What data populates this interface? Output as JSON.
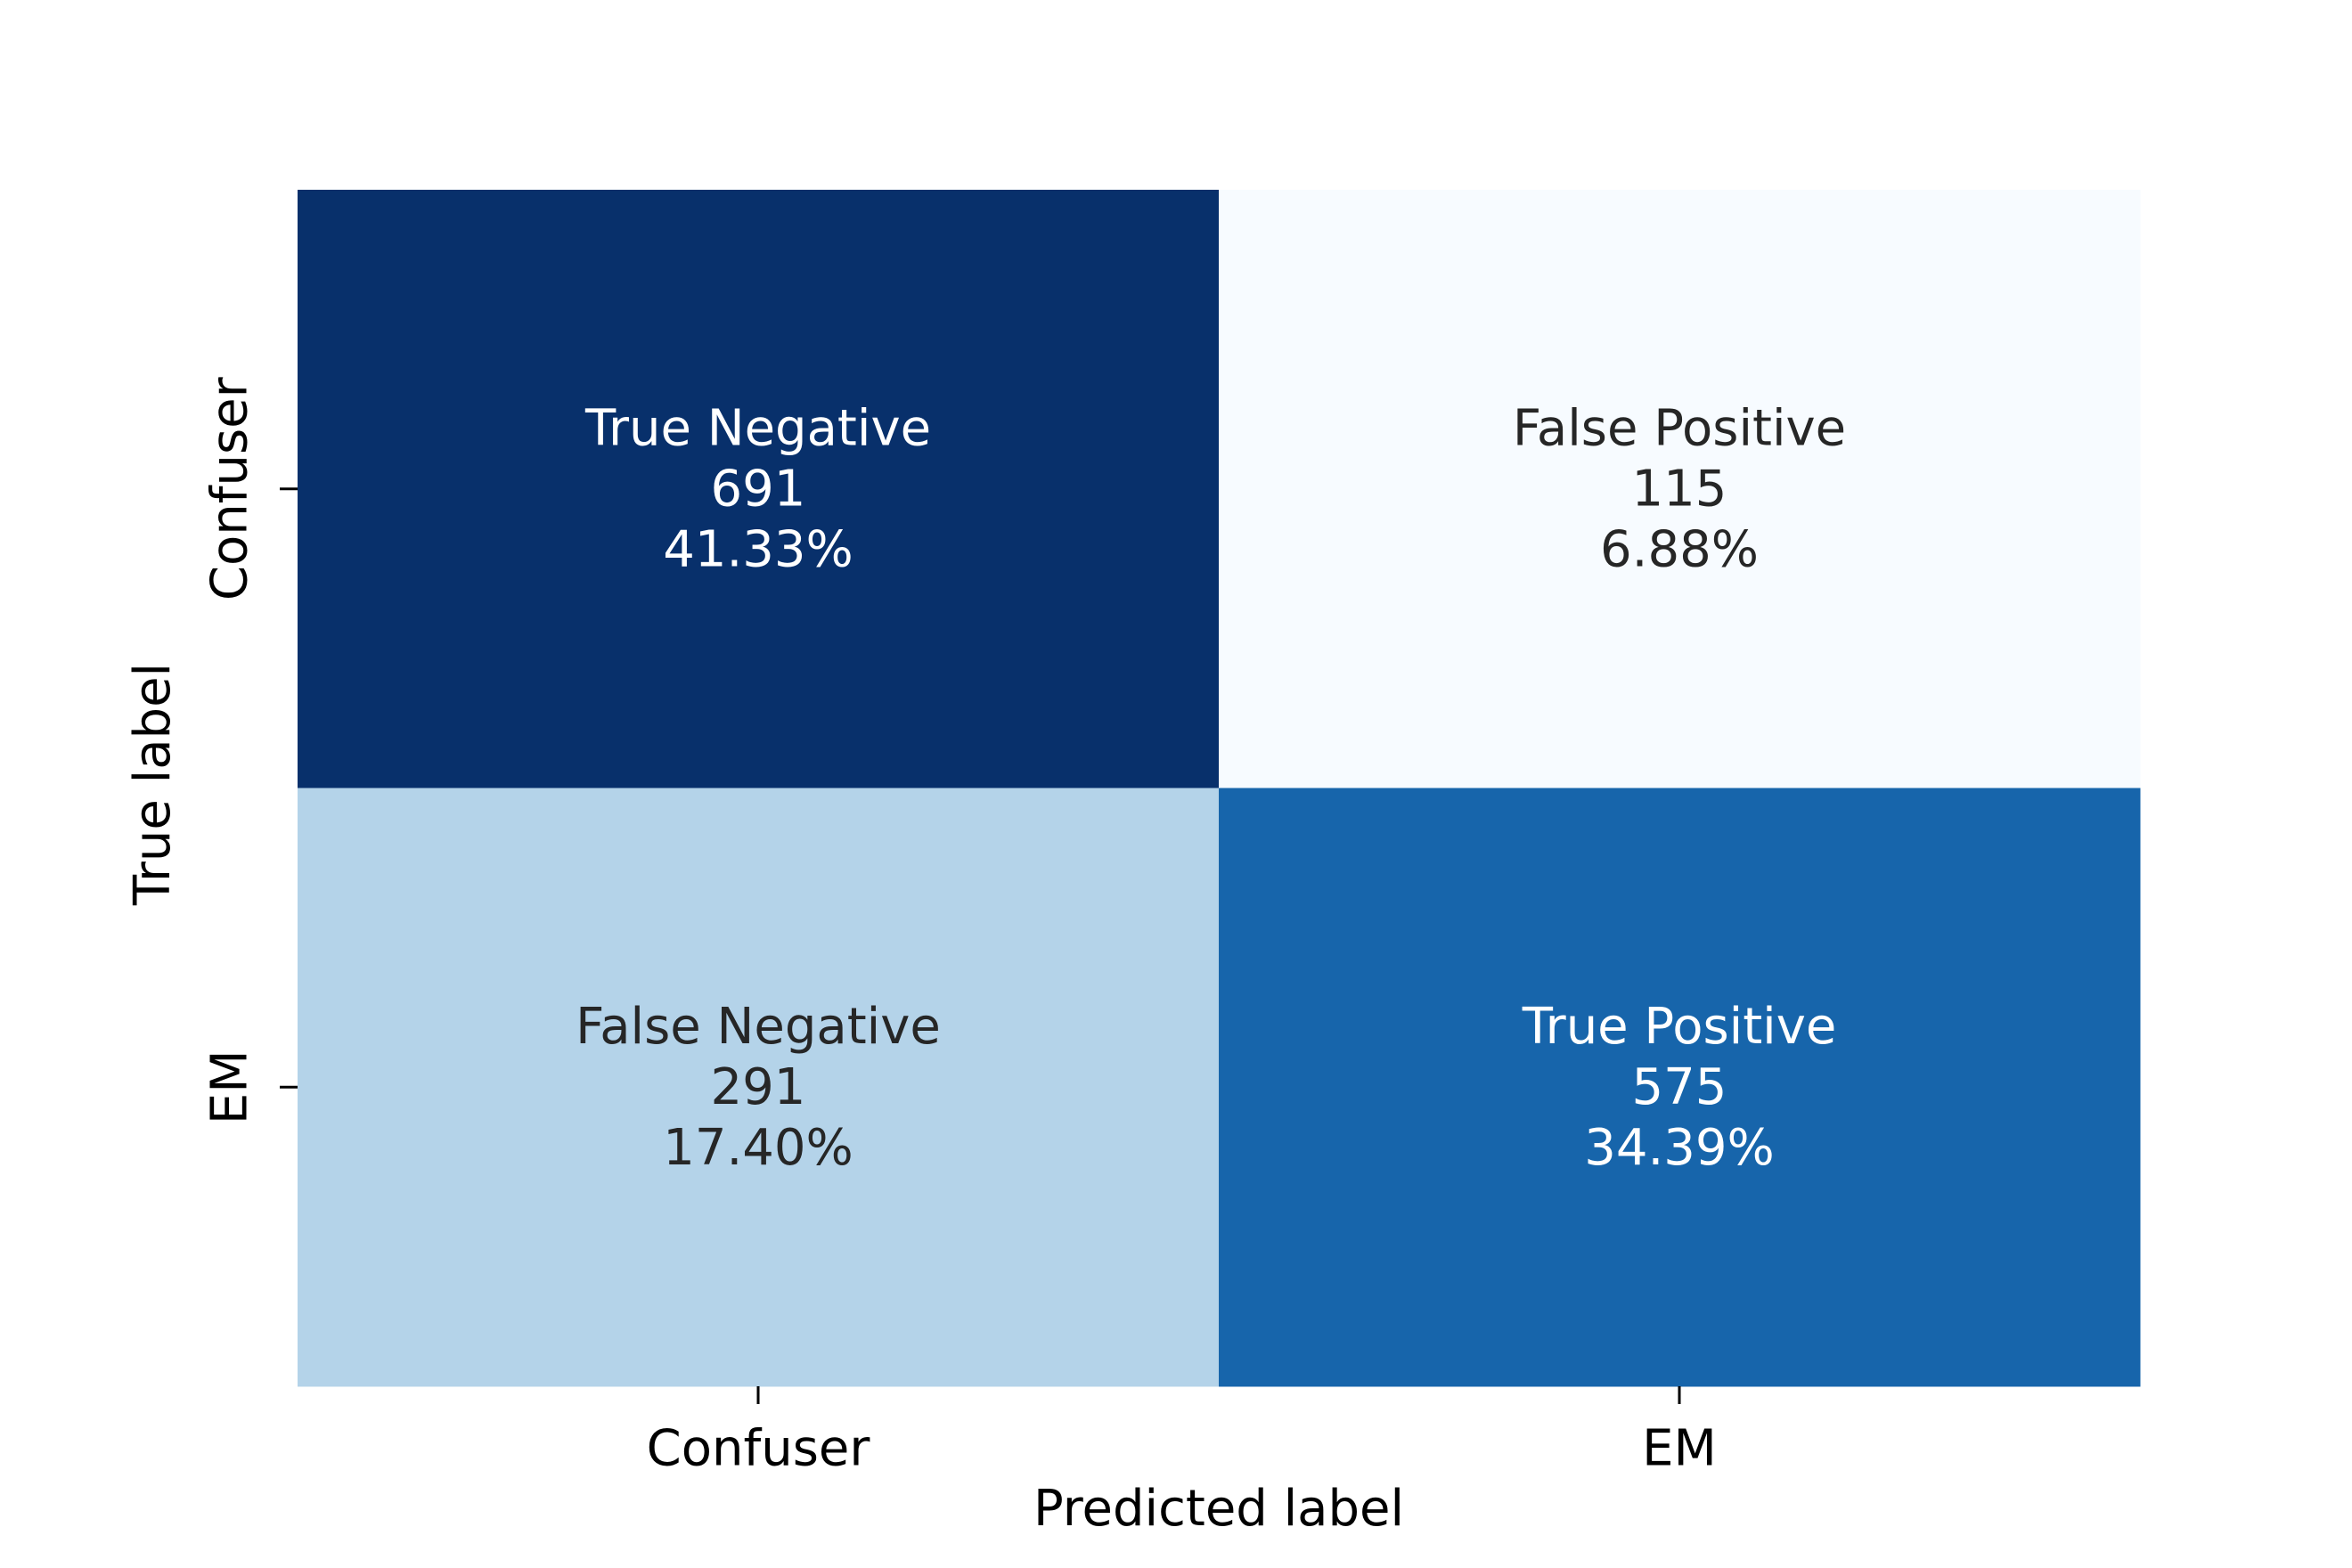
{
  "chart_data": {
    "type": "heatmap",
    "title": "",
    "xlabel": "Predicted label",
    "ylabel": "True label",
    "x_categories": [
      "Confuser",
      "EM"
    ],
    "y_categories": [
      "Confuser",
      "EM"
    ],
    "colormap": "Blues",
    "colorbar": false,
    "cells": [
      {
        "row": 0,
        "col": 0,
        "label": "True Negative",
        "count": "691",
        "percent": "41.33%",
        "value": 691
      },
      {
        "row": 0,
        "col": 1,
        "label": "False Positive",
        "count": "115",
        "percent": "6.88%",
        "value": 115
      },
      {
        "row": 1,
        "col": 0,
        "label": "False Negative",
        "count": "291",
        "percent": "17.40%",
        "value": 291
      },
      {
        "row": 1,
        "col": 1,
        "label": "True Positive",
        "count": "575",
        "percent": "34.39%",
        "value": 575
      }
    ],
    "colors": {
      "max": "#08306b",
      "min": "#f7fbff",
      "mid_light": "#b5d4e9",
      "mid_dark": "#1764ab",
      "text_on_dark": "#ffffff",
      "text_on_light": "#262626"
    }
  }
}
